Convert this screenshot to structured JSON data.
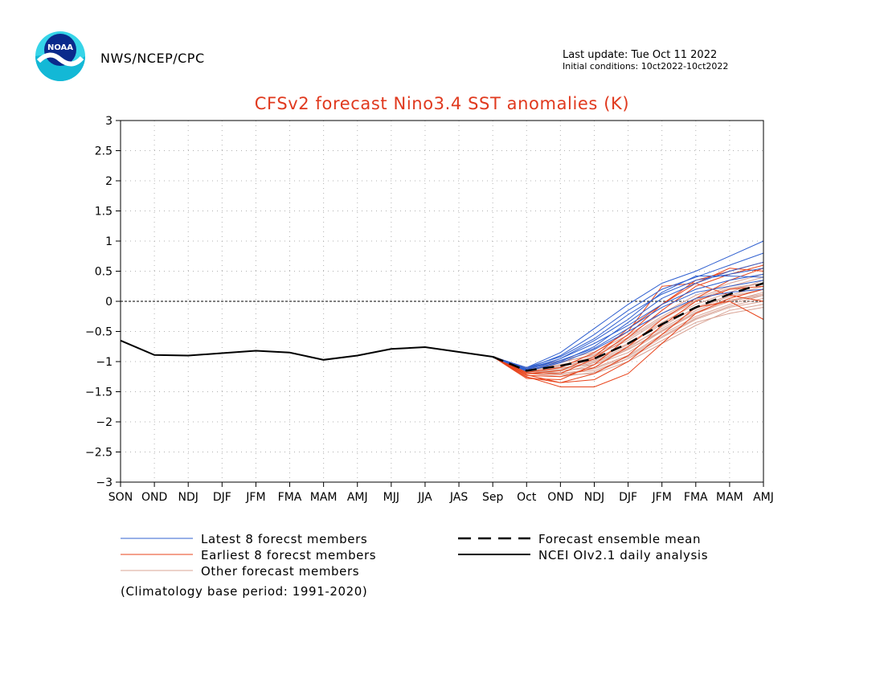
{
  "header": {
    "agency": "NWS/NCEP/CPC",
    "last_update": "Last update: Tue Oct 11 2022",
    "initial_conditions": "Initial conditions: 10ct2022-10ct2022",
    "logo_text": "NOAA"
  },
  "chart_data": {
    "type": "line",
    "title": "CFSv2 forecast Nino3.4 SST anomalies (K)",
    "categories": [
      "SON",
      "OND",
      "NDJ",
      "DJF",
      "JFM",
      "FMA",
      "MAM",
      "AMJ",
      "MJJ",
      "JJA",
      "JAS",
      "Sep",
      "Oct",
      "OND",
      "NDJ",
      "DJF",
      "JFM",
      "FMA",
      "MAM",
      "AMJ"
    ],
    "ylim": [
      -3,
      3
    ],
    "yticks": [
      "3",
      "2.5",
      "2",
      "1.5",
      "1",
      "0.5",
      "0",
      "-0.5",
      "-1",
      "-1.5",
      "-2",
      "-2.5",
      "-3"
    ],
    "grid": true,
    "zero_line": true,
    "colors": {
      "latest": "#3060d0",
      "earliest": "#e8431a",
      "other": "#d9a496",
      "mean": "#000000",
      "observed": "#000000",
      "title": "#e0391e"
    },
    "observed": {
      "name": "NCEI OIv2.1 daily analysis",
      "x": [
        0,
        1,
        2,
        3,
        4,
        5,
        6,
        7,
        8,
        9,
        10,
        11
      ],
      "values": [
        -0.65,
        -0.89,
        -0.9,
        -0.86,
        -0.82,
        -0.85,
        -0.97,
        -0.9,
        -0.79,
        -0.76,
        -0.84,
        -0.92
      ]
    },
    "ensemble_mean": {
      "name": "Forecast ensemble mean",
      "x": [
        11,
        12,
        13,
        14,
        15,
        16,
        17,
        18,
        19
      ],
      "values": [
        -0.92,
        -1.15,
        -1.07,
        -0.95,
        -0.7,
        -0.38,
        -0.1,
        0.12,
        0.3
      ]
    },
    "forecast_x": [
      11,
      12,
      13,
      14,
      15,
      16,
      17,
      18,
      19
    ],
    "latest_members": {
      "name": "Latest 8 forecst members",
      "values": [
        [
          -0.92,
          -1.12,
          -0.9,
          -0.55,
          -0.15,
          0.2,
          0.4,
          0.6,
          0.8
        ],
        [
          -0.92,
          -1.1,
          -0.85,
          -0.45,
          -0.05,
          0.3,
          0.5,
          0.75,
          1.0
        ],
        [
          -0.92,
          -1.14,
          -0.95,
          -0.7,
          -0.4,
          -0.05,
          0.2,
          0.35,
          0.45
        ],
        [
          -0.92,
          -1.15,
          -1.0,
          -0.75,
          -0.35,
          0.05,
          0.3,
          0.5,
          0.65
        ],
        [
          -0.92,
          -1.13,
          -0.98,
          -0.78,
          -0.45,
          -0.1,
          0.15,
          0.25,
          0.35
        ],
        [
          -0.92,
          -1.1,
          -0.92,
          -0.62,
          -0.22,
          0.12,
          0.35,
          0.45,
          0.55
        ],
        [
          -0.92,
          -1.16,
          -1.02,
          -0.8,
          -0.5,
          -0.2,
          0.05,
          0.15,
          0.2
        ],
        [
          -0.92,
          -1.12,
          -0.95,
          -0.65,
          -0.3,
          0.15,
          0.42,
          0.42,
          0.4
        ]
      ]
    },
    "earliest_members": {
      "name": "Earliest 8 forecst members",
      "values": [
        [
          -0.92,
          -1.25,
          -1.42,
          -1.42,
          -1.2,
          -0.7,
          -0.2,
          0.05,
          0.2
        ],
        [
          -0.92,
          -1.22,
          -1.35,
          -1.2,
          -0.9,
          -0.4,
          0.0,
          0.2,
          0.25
        ],
        [
          -0.92,
          -1.2,
          -1.2,
          -0.95,
          -0.55,
          -0.05,
          0.35,
          0.5,
          0.65
        ],
        [
          -0.92,
          -1.28,
          -1.3,
          -1.05,
          -0.6,
          -0.15,
          0.25,
          0.45,
          0.6
        ],
        [
          -0.92,
          -1.18,
          -1.1,
          -0.85,
          -0.5,
          0.25,
          0.3,
          0.55,
          0.5
        ],
        [
          -0.92,
          -1.23,
          -1.25,
          -1.1,
          -0.75,
          -0.3,
          0.05,
          0.35,
          0.55
        ],
        [
          -0.92,
          -1.26,
          -1.35,
          -1.3,
          -1.0,
          -0.55,
          -0.1,
          0.0,
          -0.3
        ],
        [
          -0.92,
          -1.2,
          -1.15,
          -0.92,
          -0.45,
          -0.05,
          0.3,
          0.1,
          0.0
        ]
      ]
    },
    "other_members": {
      "name": "Other forecast members",
      "values": [
        [
          -0.92,
          -1.15,
          -1.2,
          -1.15,
          -0.95,
          -0.6,
          -0.3,
          -0.1,
          0.0
        ],
        [
          -0.92,
          -1.12,
          -1.1,
          -1.05,
          -0.8,
          -0.5,
          -0.2,
          0.0,
          0.1
        ],
        [
          -0.92,
          -1.18,
          -1.22,
          -1.2,
          -1.0,
          -0.7,
          -0.4,
          -0.15,
          -0.05
        ],
        [
          -0.92,
          -1.1,
          -1.0,
          -0.9,
          -0.65,
          -0.3,
          0.0,
          0.2,
          0.3
        ],
        [
          -0.92,
          -1.14,
          -1.08,
          -0.98,
          -0.75,
          -0.45,
          -0.15,
          0.05,
          0.2
        ],
        [
          -0.92,
          -1.17,
          -1.15,
          -1.1,
          -0.9,
          -0.55,
          -0.25,
          -0.05,
          0.1
        ],
        [
          -0.92,
          -1.13,
          -1.05,
          -0.95,
          -0.7,
          -0.35,
          -0.05,
          0.15,
          0.35
        ],
        [
          -0.92,
          -1.16,
          -1.18,
          -1.05,
          -0.85,
          -0.5,
          -0.2,
          0.0,
          0.15
        ],
        [
          -0.92,
          -1.11,
          -1.02,
          -0.88,
          -0.6,
          -0.25,
          0.05,
          0.25,
          0.4
        ],
        [
          -0.92,
          -1.19,
          -1.25,
          -1.18,
          -0.95,
          -0.65,
          -0.35,
          -0.2,
          -0.1
        ],
        [
          -0.92,
          -1.14,
          -1.12,
          -1.0,
          -0.78,
          -0.42,
          -0.1,
          0.1,
          0.25
        ],
        [
          -0.92,
          -1.12,
          -1.06,
          -0.92,
          -0.62,
          -0.28,
          0.02,
          0.22,
          0.3
        ],
        [
          -0.92,
          -1.16,
          -1.2,
          -1.12,
          -0.92,
          -0.58,
          -0.28,
          -0.08,
          0.05
        ],
        [
          -0.92,
          -1.13,
          -1.08,
          -0.96,
          -0.72,
          -0.38,
          -0.12,
          0.08,
          0.2
        ],
        [
          -0.92,
          -1.15,
          -1.14,
          -1.02,
          -0.8,
          -0.48,
          -0.18,
          0.02,
          0.12
        ],
        [
          -0.92,
          -1.1,
          -0.98,
          -0.84,
          -0.56,
          -0.2,
          0.1,
          0.3,
          0.45
        ]
      ]
    },
    "footnote": "(Climatology base period: 1991-2020)"
  }
}
